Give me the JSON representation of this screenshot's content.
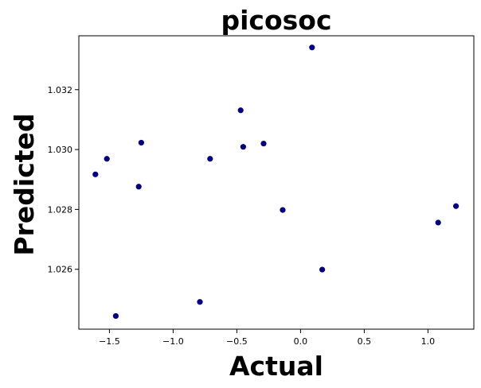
{
  "chart_data": {
    "type": "scatter",
    "title": "picosoc",
    "xlabel": "Actual",
    "ylabel": "Predicted",
    "xlim": [
      -1.74,
      1.36
    ],
    "ylim": [
      1.024,
      1.0338
    ],
    "xticks": [
      -1.5,
      -1.0,
      -0.5,
      0.0,
      0.5,
      1.0
    ],
    "xtick_labels": [
      "−1.5",
      "−1.0",
      "−0.5",
      "0.0",
      "0.5",
      "1.0"
    ],
    "yticks": [
      1.026,
      1.028,
      1.03,
      1.032
    ],
    "ytick_labels": [
      "1.026",
      "1.028",
      "1.030",
      "1.032"
    ],
    "grid": false,
    "marker_color": "#000080",
    "points": [
      {
        "x": -1.61,
        "y": 1.02917
      },
      {
        "x": -1.52,
        "y": 1.02969
      },
      {
        "x": -1.45,
        "y": 1.02444
      },
      {
        "x": -1.27,
        "y": 1.02876
      },
      {
        "x": -1.25,
        "y": 1.03023
      },
      {
        "x": -0.79,
        "y": 1.02491
      },
      {
        "x": -0.71,
        "y": 1.02969
      },
      {
        "x": -0.47,
        "y": 1.03131
      },
      {
        "x": -0.45,
        "y": 1.03009
      },
      {
        "x": -0.29,
        "y": 1.0302
      },
      {
        "x": -0.14,
        "y": 1.02798
      },
      {
        "x": 0.09,
        "y": 1.03341
      },
      {
        "x": 0.17,
        "y": 1.02599
      },
      {
        "x": 1.08,
        "y": 1.02756
      },
      {
        "x": 1.22,
        "y": 1.02811
      }
    ]
  }
}
